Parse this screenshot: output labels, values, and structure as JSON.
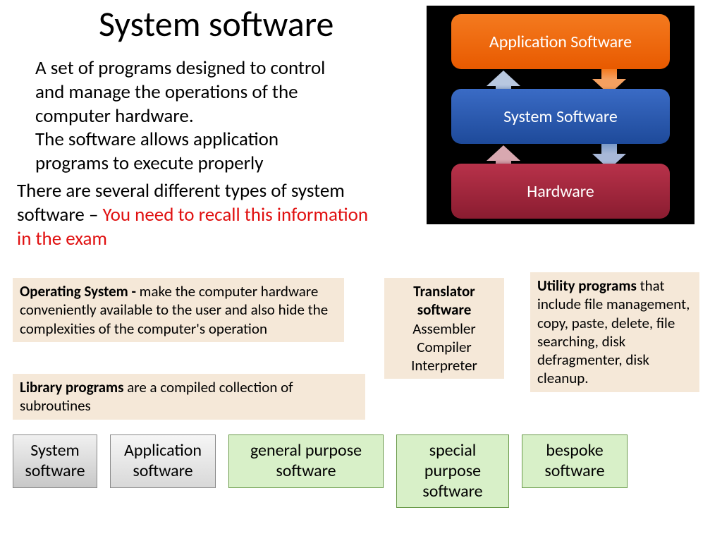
{
  "title": "System software",
  "paragraph1_line1": "A set of programs designed to control",
  "paragraph1_line2": "and manage the operations of the",
  "paragraph1_line3": "computer hardware.",
  "paragraph1_line4": "The software allows application",
  "paragraph1_line5": "programs to execute properly",
  "paragraph2_black": "There are several different types of system software – ",
  "paragraph2_red": "You need to recall this information in the exam",
  "diagram": {
    "layers": {
      "app": "Application Software",
      "sys": "System Software",
      "hw": "Hardware"
    },
    "colors": {
      "background": "#000000",
      "app_gradient": [
        "#f47a1f",
        "#e85a00"
      ],
      "sys_gradient": [
        "#3a6bc5",
        "#1e4a9a"
      ],
      "hw_gradient": [
        "#b8324a",
        "#8a1c30"
      ],
      "text": "#ffffff"
    },
    "border_radius": 14,
    "font_size": 24
  },
  "boxes": {
    "os_bold": "Operating System - ",
    "os_text": "make the computer hardware conveniently available to the user and also hide the complexities of the computer's operation",
    "lib_bold": "Library programs ",
    "lib_text": "are a compiled collection of subroutines",
    "trans_title": "Translator software",
    "trans_line1": "Assembler",
    "trans_line2": "Compiler",
    "trans_line3": "Interpreter",
    "util_bold": "Utility programs ",
    "util_text": "that include file management, copy, paste, delete, file searching, disk defragmenter, disk cleanup."
  },
  "box_style": {
    "background": "#f5e8d8",
    "font_size": 21,
    "text_color": "#000000"
  },
  "tabs": {
    "t1": "System software",
    "t2": "Application software",
    "t3": "general purpose software",
    "t4": "special purpose software",
    "t5": "bespoke software"
  },
  "tab_colors": {
    "gray_gradient": [
      "#f0f0f0",
      "#c8c8c8"
    ],
    "gray2_gradient": [
      "#f6f6f6",
      "#d8d8d8"
    ],
    "green_fill": "#d8f0c8",
    "green_border": "#6a9a4a"
  },
  "typography": {
    "title_fontsize": 50,
    "body_fontsize": 27,
    "tab_fontsize": 24,
    "font_family": "Calibri"
  },
  "emphasis_color": "#e01010"
}
